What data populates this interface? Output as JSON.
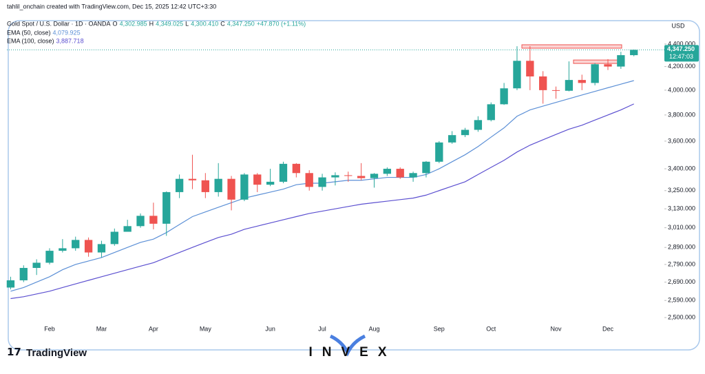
{
  "header": {
    "credit": "tahlil_onchain created with TradingView.com, Dec 15, 2025 12:42 UTC+3:30",
    "symbol": "Gold Spot / U.S. Dollar · 1D · OANDA",
    "ohlc": [
      {
        "key": "O",
        "value": "4,302.985"
      },
      {
        "key": "H",
        "value": "4,349.025"
      },
      {
        "key": "L",
        "value": "4,300.410"
      },
      {
        "key": "C",
        "value": "4,347.250"
      }
    ],
    "change": "+47.870 (+1.11%)"
  },
  "footer": {
    "logo": "TradingView",
    "watermark": "INVEX"
  },
  "chart_data": {
    "type": "candlestick",
    "currency": "USD",
    "last_price_label": "4,347.250",
    "countdown": "12:47:03",
    "log_scale": true,
    "up_color": "#26a69a",
    "down_color": "#ef5350",
    "categories": [
      null,
      null,
      null,
      "Feb",
      null,
      null,
      null,
      "Mar",
      null,
      null,
      null,
      "Apr",
      null,
      null,
      null,
      "May",
      null,
      null,
      null,
      null,
      "Jun",
      null,
      null,
      null,
      "Jul",
      null,
      null,
      null,
      "Aug",
      null,
      null,
      null,
      null,
      "Sep",
      null,
      null,
      null,
      "Oct",
      null,
      null,
      null,
      null,
      "Nov",
      null,
      null,
      null,
      "Dec",
      null,
      null
    ],
    "open": [
      2660,
      2700,
      2770,
      2800,
      2870,
      2885,
      2935,
      2860,
      2910,
      2985,
      3020,
      3085,
      3035,
      3240,
      3330,
      3320,
      3240,
      3330,
      3190,
      3360,
      3290,
      3310,
      3435,
      3370,
      3275,
      3340,
      3355,
      3350,
      3335,
      3365,
      3400,
      3340,
      3370,
      3450,
      3590,
      3645,
      3685,
      3760,
      3885,
      4015,
      4250,
      4115,
      4000,
      3995,
      4085,
      4060,
      4220,
      4200,
      4300
    ],
    "high": [
      2720,
      2785,
      2820,
      2885,
      2940,
      2955,
      2950,
      2930,
      3005,
      3060,
      3100,
      3170,
      3245,
      3360,
      3500,
      3370,
      3440,
      3350,
      3370,
      3370,
      3400,
      3450,
      3440,
      3390,
      3365,
      3375,
      3380,
      3440,
      3370,
      3410,
      3410,
      3380,
      3455,
      3600,
      3675,
      3700,
      3790,
      3900,
      4060,
      4380,
      4381,
      4160,
      4030,
      4245,
      4130,
      4230,
      4265,
      4330,
      4349.025
    ],
    "low": [
      2650,
      2690,
      2730,
      2790,
      2860,
      2870,
      2835,
      2830,
      2900,
      2990,
      3010,
      3000,
      2960,
      3200,
      3260,
      3200,
      3210,
      3120,
      3180,
      3240,
      3280,
      3300,
      3340,
      3250,
      3250,
      3285,
      3310,
      3320,
      3270,
      3350,
      3330,
      3310,
      3340,
      3440,
      3580,
      3630,
      3670,
      3750,
      3880,
      4000,
      4000,
      3890,
      3930,
      3990,
      4000,
      4040,
      4170,
      4180,
      4290
    ],
    "close": [
      2700,
      2770,
      2800,
      2870,
      2885,
      2935,
      2860,
      2910,
      2985,
      3020,
      3085,
      3035,
      3240,
      3330,
      3320,
      3240,
      3330,
      3190,
      3360,
      3290,
      3310,
      3435,
      3370,
      3275,
      3340,
      3355,
      3350,
      3335,
      3365,
      3400,
      3340,
      3370,
      3450,
      3590,
      3645,
      3685,
      3760,
      3885,
      4015,
      4250,
      4115,
      4000,
      3995,
      4085,
      4060,
      4220,
      4200,
      4300,
      4347.25
    ],
    "series": [
      {
        "name": "EMA (50, close)",
        "color": "#5b8fd6",
        "last_label": "4,079.925",
        "values": [
          2640,
          2660,
          2690,
          2720,
          2760,
          2790,
          2810,
          2830,
          2860,
          2890,
          2920,
          2940,
          2980,
          3030,
          3080,
          3110,
          3140,
          3170,
          3200,
          3220,
          3240,
          3260,
          3290,
          3300,
          3300,
          3310,
          3320,
          3320,
          3330,
          3340,
          3340,
          3340,
          3360,
          3400,
          3450,
          3500,
          3560,
          3630,
          3700,
          3790,
          3840,
          3870,
          3900,
          3930,
          3960,
          3990,
          4020,
          4050,
          4079.925
        ]
      },
      {
        "name": "EMA (100, close)",
        "color": "#5b4fd0",
        "last_label": "3,887.718",
        "values": [
          2600,
          2610,
          2625,
          2640,
          2660,
          2680,
          2700,
          2720,
          2740,
          2760,
          2780,
          2800,
          2830,
          2860,
          2890,
          2920,
          2950,
          2970,
          3000,
          3020,
          3040,
          3060,
          3080,
          3100,
          3115,
          3130,
          3145,
          3160,
          3170,
          3180,
          3190,
          3200,
          3220,
          3250,
          3280,
          3310,
          3360,
          3410,
          3460,
          3520,
          3570,
          3610,
          3650,
          3690,
          3720,
          3760,
          3800,
          3840,
          3887.718
        ]
      }
    ],
    "resistance_levels": [
      4381,
      4245
    ],
    "ylim": [
      2486,
      4585
    ],
    "yticks": [
      {
        "value": 2500,
        "label": "2,500.000"
      },
      {
        "value": 2590,
        "label": "2,590.000"
      },
      {
        "value": 2690,
        "label": "2,690.000"
      },
      {
        "value": 2790,
        "label": "2,790.000"
      },
      {
        "value": 2890,
        "label": "2,890.000"
      },
      {
        "value": 3010,
        "label": "3,010.000"
      },
      {
        "value": 3130,
        "label": "3,130.000"
      },
      {
        "value": 3250,
        "label": "3,250.000"
      },
      {
        "value": 3400,
        "label": "3,400.000"
      },
      {
        "value": 3600,
        "label": "3,600.000"
      },
      {
        "value": 3800,
        "label": "3,800.000"
      },
      {
        "value": 4000,
        "label": "4,000.000"
      },
      {
        "value": 4200,
        "label": "4,200.000"
      },
      {
        "value": 4400,
        "label": "4,400.000"
      }
    ]
  }
}
